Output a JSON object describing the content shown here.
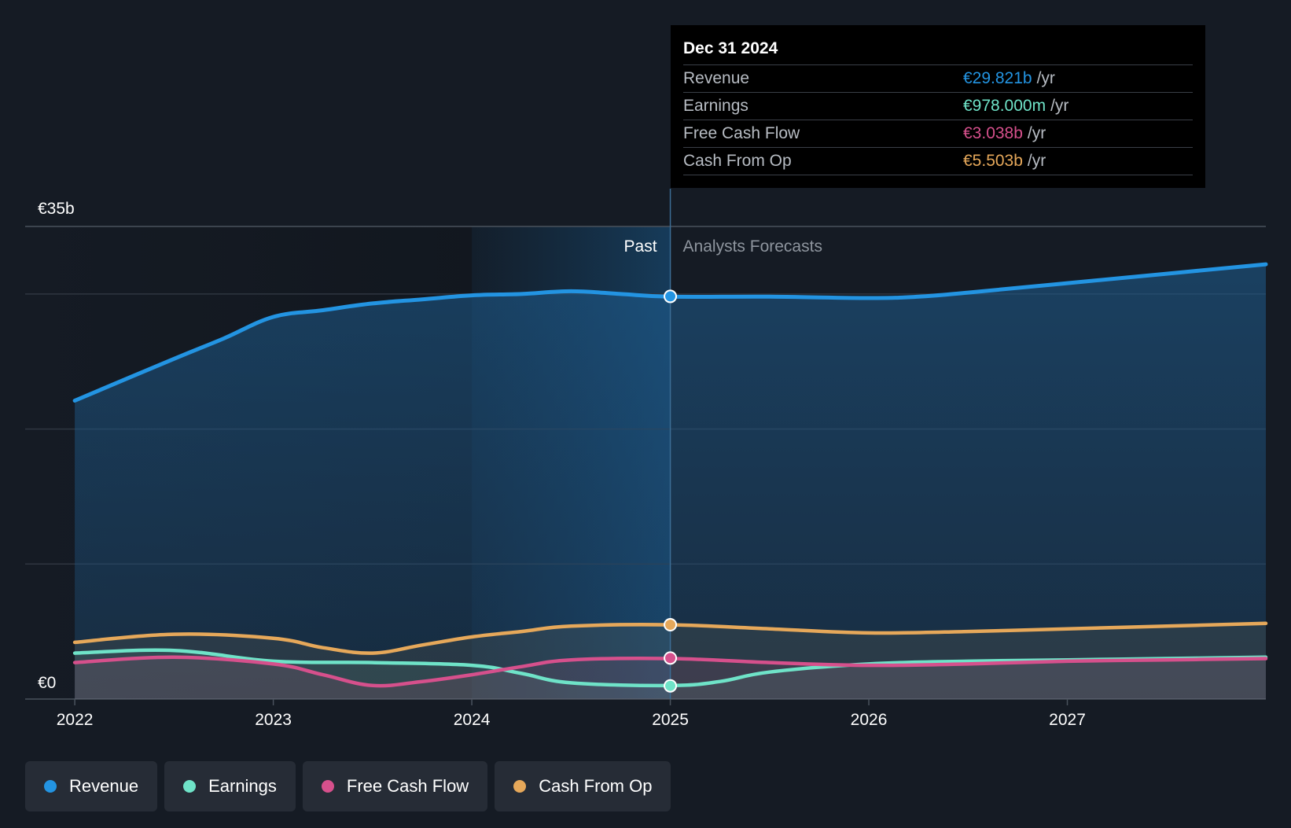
{
  "chart_data": {
    "type": "area",
    "x_unit": "year",
    "x_range": [
      2021.75,
      2028.0
    ],
    "y_range": [
      0,
      35
    ],
    "y_unit": "€b",
    "y_tick_labels": [
      "€0",
      "€35b"
    ],
    "x_tick_values": [
      2022,
      2023,
      2024,
      2025,
      2026,
      2027
    ],
    "x_tick_labels": [
      "2022",
      "2023",
      "2024",
      "2025",
      "2026",
      "2027"
    ],
    "gridlines": [
      0,
      10,
      20,
      30,
      35
    ],
    "past_label": "Past",
    "forecast_label": "Analysts Forecasts",
    "divider_x": 2025.0,
    "highlight_start_x": 2024.0,
    "series": [
      {
        "name": "Revenue",
        "color": "#2394e2",
        "x": [
          2022.0,
          2022.5,
          2022.75,
          2023.0,
          2023.25,
          2023.5,
          2023.75,
          2024.0,
          2024.25,
          2024.5,
          2024.75,
          2025.0,
          2025.5,
          2026.0,
          2026.25,
          2026.5,
          2027.0,
          2027.5,
          2028.0
        ],
        "values": [
          22.1,
          25.2,
          26.7,
          28.3,
          28.8,
          29.3,
          29.6,
          29.9,
          30.0,
          30.2,
          30.0,
          29.8,
          29.8,
          29.7,
          29.8,
          30.1,
          30.8,
          31.5,
          32.2
        ]
      },
      {
        "name": "Earnings",
        "color": "#6fe3c8",
        "x": [
          2022.0,
          2022.5,
          2023.0,
          2023.5,
          2024.0,
          2024.25,
          2024.5,
          2025.0,
          2025.25,
          2025.5,
          2026.0,
          2026.5,
          2027.0,
          2027.5,
          2028.0
        ],
        "values": [
          3.4,
          3.6,
          2.8,
          2.7,
          2.5,
          1.9,
          1.2,
          1.0,
          1.3,
          2.0,
          2.6,
          2.8,
          2.9,
          3.0,
          3.1
        ]
      },
      {
        "name": "Free Cash Flow",
        "color": "#d6508c",
        "x": [
          2022.0,
          2022.5,
          2023.0,
          2023.25,
          2023.5,
          2023.75,
          2024.0,
          2024.25,
          2024.5,
          2025.0,
          2025.5,
          2026.0,
          2026.5,
          2027.0,
          2027.5,
          2028.0
        ],
        "values": [
          2.7,
          3.1,
          2.6,
          1.8,
          1.0,
          1.3,
          1.8,
          2.4,
          2.9,
          3.0,
          2.7,
          2.5,
          2.6,
          2.8,
          2.9,
          3.0
        ]
      },
      {
        "name": "Cash From Op",
        "color": "#e6a85a",
        "x": [
          2022.0,
          2022.5,
          2023.0,
          2023.25,
          2023.5,
          2023.75,
          2024.0,
          2024.25,
          2024.5,
          2025.0,
          2025.5,
          2026.0,
          2026.5,
          2027.0,
          2027.5,
          2028.0
        ],
        "values": [
          4.2,
          4.8,
          4.5,
          3.8,
          3.4,
          4.0,
          4.6,
          5.0,
          5.4,
          5.5,
          5.2,
          4.9,
          5.0,
          5.2,
          5.4,
          5.6
        ]
      }
    ],
    "highlight_point_x": 2025.0,
    "highlight_point_values": {
      "Revenue": 29.821,
      "Earnings": 0.978,
      "Free Cash Flow": 3.038,
      "Cash From Op": 5.503
    }
  },
  "tooltip": {
    "date": "Dec 31 2024",
    "unit": "/yr",
    "rows": [
      {
        "label": "Revenue",
        "value": "€29.821b",
        "color": "#2394e2"
      },
      {
        "label": "Earnings",
        "value": "€978.000m",
        "color": "#6fe3c8"
      },
      {
        "label": "Free Cash Flow",
        "value": "€3.038b",
        "color": "#d6508c"
      },
      {
        "label": "Cash From Op",
        "value": "€5.503b",
        "color": "#e6a85a"
      }
    ]
  },
  "legend": [
    {
      "label": "Revenue",
      "color": "#2394e2"
    },
    {
      "label": "Earnings",
      "color": "#6fe3c8"
    },
    {
      "label": "Free Cash Flow",
      "color": "#d6508c"
    },
    {
      "label": "Cash From Op",
      "color": "#e6a85a"
    }
  ]
}
